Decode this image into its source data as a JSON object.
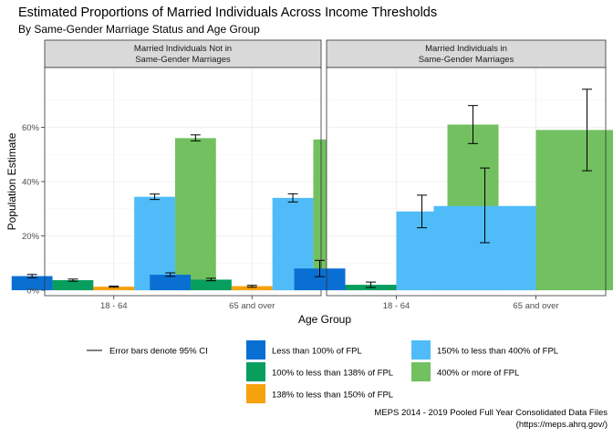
{
  "chart_data": {
    "type": "bar",
    "title": "Estimated Proportions of Married Individuals Across Income Thresholds",
    "subtitle": "By Same-Gender Marriage Status and Age Group",
    "xlabel": "Age Group",
    "ylabel": "Population Estimate",
    "ylim": [
      -0.02,
      0.82
    ],
    "yticks": [
      0,
      0.2,
      0.4,
      0.6
    ],
    "ytick_labels": [
      "0%",
      "20%",
      "40%",
      "60%"
    ],
    "categories": [
      "18 - 64",
      "65 and over"
    ],
    "series": [
      {
        "name": "Less than 100% of FPL",
        "color": "#0a6fd3"
      },
      {
        "name": "100% to less than 138% of FPL",
        "color": "#079e5e"
      },
      {
        "name": "138% to less than 150% of FPL",
        "color": "#f6a20d"
      },
      {
        "name": "150% to less than 400% of FPL",
        "color": "#4fbcf9"
      },
      {
        "name": "400% or more of FPL",
        "color": "#72c060"
      }
    ],
    "panels": [
      {
        "title_line1": "Married Individuals Not in",
        "title_line2": "Same-Gender Marriages",
        "groups": [
          {
            "category": "18 - 64",
            "bars": [
              {
                "series": 0,
                "value": 0.052,
                "lo": 0.046,
                "hi": 0.058
              },
              {
                "series": 1,
                "value": 0.037,
                "lo": 0.033,
                "hi": 0.041
              },
              {
                "series": 2,
                "value": 0.013,
                "lo": 0.011,
                "hi": 0.015
              },
              {
                "series": 3,
                "value": 0.344,
                "lo": 0.334,
                "hi": 0.354
              },
              {
                "series": 4,
                "value": 0.56,
                "lo": 0.55,
                "hi": 0.572
              }
            ]
          },
          {
            "category": "65 and over",
            "bars": [
              {
                "series": 0,
                "value": 0.057,
                "lo": 0.051,
                "hi": 0.064
              },
              {
                "series": 1,
                "value": 0.039,
                "lo": 0.035,
                "hi": 0.044
              },
              {
                "series": 2,
                "value": 0.015,
                "lo": 0.011,
                "hi": 0.018
              },
              {
                "series": 3,
                "value": 0.34,
                "lo": 0.325,
                "hi": 0.355
              },
              {
                "series": 4,
                "value": 0.555,
                "lo": 0.54,
                "hi": 0.572
              }
            ]
          }
        ]
      },
      {
        "title_line1": "Married Individuals in",
        "title_line2": "Same-Gender Marriages",
        "groups": [
          {
            "category": "18 - 64",
            "bars": [
              {
                "series": 0,
                "value": 0.08,
                "lo": 0.05,
                "hi": 0.11
              },
              {
                "series": 1,
                "value": 0.02,
                "lo": 0.01,
                "hi": 0.03
              },
              {
                "series": 3,
                "value": 0.29,
                "lo": 0.23,
                "hi": 0.35
              },
              {
                "series": 4,
                "value": 0.61,
                "lo": 0.54,
                "hi": 0.68
              }
            ]
          },
          {
            "category": "65 and over",
            "bars": [
              {
                "series": 3,
                "value": 0.31,
                "lo": 0.175,
                "hi": 0.45
              },
              {
                "series": 4,
                "value": 0.59,
                "lo": 0.44,
                "hi": 0.74
              }
            ]
          }
        ]
      }
    ],
    "legend_placement": "bottom",
    "grid": true
  },
  "legend": {
    "error_bar_note": "Error bars denote 95% CI"
  },
  "caption": {
    "line1": "MEPS 2014 - 2019 Pooled Full Year Consolidated Data Files",
    "line2": "(https://meps.ahrq.gov/)"
  }
}
